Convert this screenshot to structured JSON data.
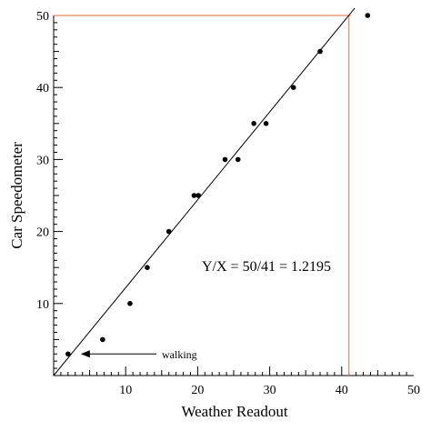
{
  "chart_data": {
    "type": "scatter",
    "title": "",
    "xlabel": "Weather Readout",
    "ylabel": "Car Speedometer",
    "xlim": [
      0,
      50
    ],
    "ylim": [
      0,
      50
    ],
    "x_ticks": [
      10,
      20,
      30,
      40,
      50
    ],
    "y_ticks": [
      10,
      20,
      30,
      40,
      50
    ],
    "grid": false,
    "colors": {
      "points": "#000000",
      "fit_line": "#000000",
      "reference_lines": "#e8895a"
    },
    "series": [
      {
        "x": [
          2.0,
          6.8,
          10.6,
          13.0,
          16.0,
          19.5,
          20.1,
          23.8,
          25.6,
          27.8,
          29.5,
          33.3,
          37.0,
          43.6
        ],
        "y": [
          3,
          5,
          10,
          15,
          20,
          25,
          25,
          30,
          30,
          35,
          35,
          40,
          45,
          50
        ]
      }
    ],
    "fit_line": {
      "from": [
        0,
        0
      ],
      "to": [
        41.8,
        51
      ]
    },
    "reference_lines": {
      "x": 41,
      "y": 50
    },
    "annotations": {
      "ratio": "Y/X = 50/41 = 1.2195",
      "walking": "walking",
      "walking_target": [
        2.0,
        3
      ]
    }
  }
}
